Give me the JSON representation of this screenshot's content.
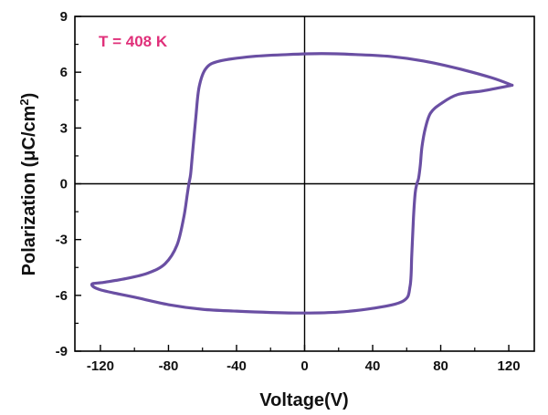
{
  "chart_data": {
    "type": "line",
    "title": "",
    "xlabel": "Voltage(V)",
    "ylabel_main": "Polarization (",
    "ylabel_mu": "μ",
    "ylabel_unit": "C/cm",
    "ylabel_sup": "2",
    "ylabel_close": ")",
    "xlim": [
      -135,
      135
    ],
    "ylim": [
      -9,
      9
    ],
    "xticks": [
      -120,
      -80,
      -40,
      0,
      40,
      80,
      120
    ],
    "yticks": [
      -9,
      -6,
      -3,
      0,
      3,
      6,
      9
    ],
    "xtick_labels": [
      "-120",
      "-80",
      "-40",
      "0",
      "40",
      "80",
      "120"
    ],
    "ytick_labels": [
      "-9",
      "-6",
      "-3",
      "0",
      "3",
      "6",
      "9"
    ],
    "annotation": "T = 408 K",
    "annotation_color": "#e0307a",
    "line_color": "#6a4fa3",
    "grid": false,
    "zero_lines": true,
    "series": [
      {
        "x": [
          122,
          110,
          90,
          70,
          50,
          30,
          10,
          -10,
          -30,
          -50,
          -58,
          -62,
          -64,
          -66,
          -67,
          -68,
          -69,
          -71,
          -75,
          -82,
          -92,
          -105,
          -118,
          -125,
          -120,
          -100,
          -80,
          -60,
          -40,
          -20,
          0,
          20,
          40,
          58,
          62,
          63,
          64,
          65,
          66,
          67,
          68,
          69,
          71,
          74,
          80,
          90,
          105,
          122
        ],
        "y": [
          5.3,
          5.7,
          6.2,
          6.6,
          6.85,
          6.95,
          7.0,
          6.95,
          6.85,
          6.6,
          6.2,
          5.2,
          3.5,
          1.5,
          0.5,
          0.0,
          -0.6,
          -1.8,
          -3.3,
          -4.3,
          -4.8,
          -5.1,
          -5.3,
          -5.4,
          -5.7,
          -6.1,
          -6.5,
          -6.75,
          -6.85,
          -6.92,
          -6.95,
          -6.9,
          -6.7,
          -6.3,
          -5.5,
          -3.8,
          -1.8,
          -0.5,
          0.0,
          0.3,
          1.0,
          2.0,
          3.0,
          3.8,
          4.3,
          4.8,
          5.0,
          5.3
        ]
      }
    ]
  }
}
